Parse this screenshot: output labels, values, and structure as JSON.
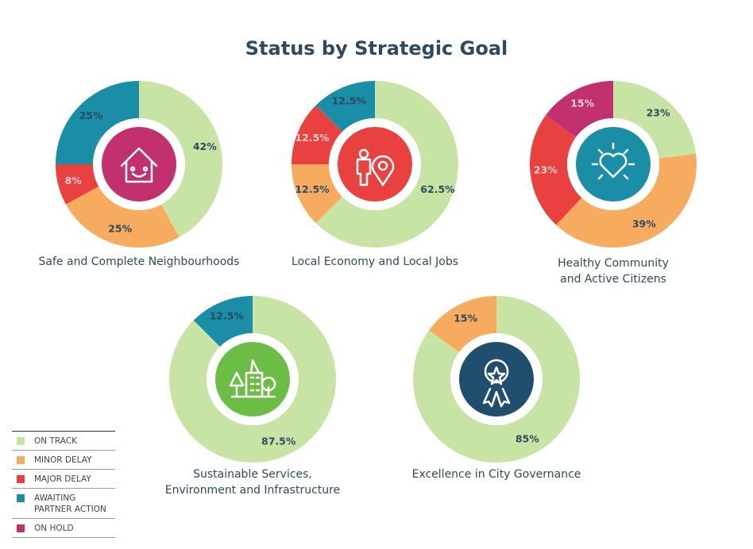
{
  "title": "Status by Strategic Goal",
  "legend": [
    {
      "name": "ON TRACK",
      "color": "#c8e4a4"
    },
    {
      "name": "MINOR DELAY",
      "color": "#f7ab5e"
    },
    {
      "name": "MAJOR DELAY",
      "color": "#e8413f"
    },
    {
      "name": "AWAITING PARTNER ACTION",
      "color": "#1a8ea6"
    },
    {
      "name": "ON HOLD",
      "color": "#c2306e"
    }
  ],
  "chart_data": [
    {
      "type": "pie",
      "title": [
        "Safe and Complete Neighbourhoods"
      ],
      "values": [
        42,
        25,
        8,
        25,
        null
      ],
      "value_labels": [
        "42%",
        "25%",
        "8%",
        "25%",
        null
      ]
    },
    {
      "type": "pie",
      "title": [
        "Local Economy and Local Jobs"
      ],
      "values": [
        62.5,
        12.5,
        12.5,
        12.5,
        null
      ],
      "value_labels": [
        "62.5%",
        "12.5%",
        "12.5%",
        "12.5%",
        null
      ]
    },
    {
      "type": "pie",
      "title": [
        "Healthy Community",
        "and Active Citizens"
      ],
      "values": [
        23,
        39,
        23,
        null,
        15
      ],
      "value_labels": [
        "23%",
        "39%",
        "23%",
        null,
        "15%"
      ]
    },
    {
      "type": "pie",
      "title": [
        "Sustainable Services,",
        "Environment and Infrastructure"
      ],
      "values": [
        87.5,
        null,
        null,
        12.5,
        null
      ],
      "value_labels": [
        "87.5%",
        null,
        null,
        "12.5%",
        null
      ]
    },
    {
      "type": "pie",
      "title": [
        "Excellence in City Governance"
      ],
      "values": [
        85,
        15,
        null,
        null,
        null
      ],
      "value_labels": [
        "85%",
        "15%",
        null,
        null,
        null
      ]
    }
  ]
}
